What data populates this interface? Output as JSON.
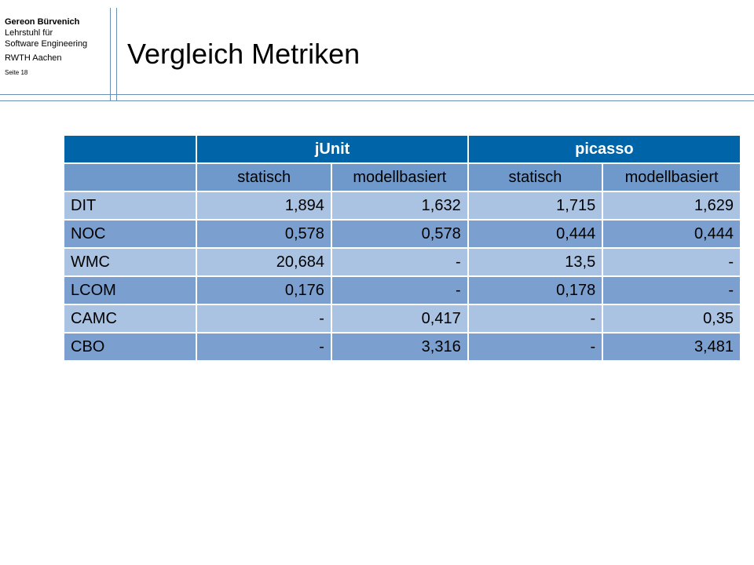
{
  "header": {
    "author": "Gereon Bürvenich",
    "institute_line1": "Lehrstuhl für",
    "institute_line2": "Software Engineering",
    "university": "RWTH Aachen",
    "page": "Seite 18"
  },
  "slide": {
    "title": "Vergleich Metriken"
  },
  "table": {
    "groups": [
      "jUnit",
      "picasso"
    ],
    "subheaders": [
      "statisch",
      "modellbasiert",
      "statisch",
      "modellbasiert"
    ],
    "rows": [
      {
        "metric": "DIT",
        "values": [
          "1,894",
          "1,632",
          "1,715",
          "1,629"
        ]
      },
      {
        "metric": "NOC",
        "values": [
          "0,578",
          "0,578",
          "0,444",
          "0,444"
        ]
      },
      {
        "metric": "WMC",
        "values": [
          "20,684",
          "-",
          "13,5",
          "-"
        ]
      },
      {
        "metric": "LCOM",
        "values": [
          "0,176",
          "-",
          "0,178",
          "-"
        ]
      },
      {
        "metric": "CAMC",
        "values": [
          "-",
          "0,417",
          "-",
          "0,35"
        ]
      },
      {
        "metric": "CBO",
        "values": [
          "-",
          "3,316",
          "-",
          "3,481"
        ]
      }
    ]
  },
  "colors": {
    "header_dark": "#0065a8",
    "header_sub": "#6f99cb",
    "row_light": "#aac3e2",
    "row_dark": "#7ba0cf",
    "rule_lines": "#6b8fb5"
  }
}
